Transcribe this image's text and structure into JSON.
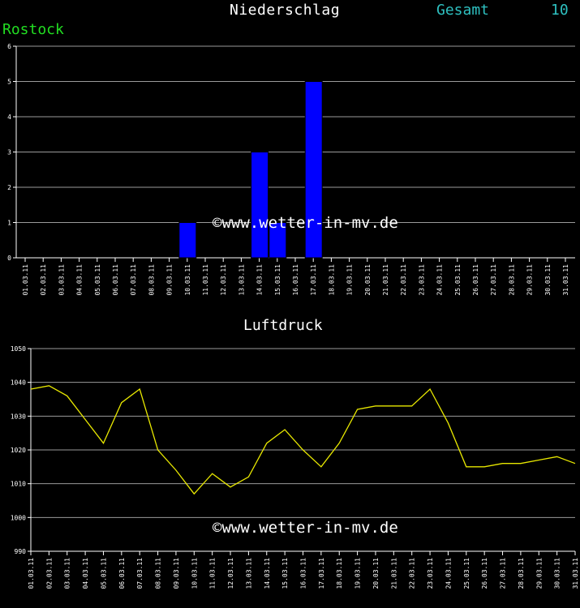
{
  "header": {
    "title": "Niederschlag",
    "total_label": "Gesamt",
    "total_value": "10",
    "station": "Rostock"
  },
  "watermark": "©www.wetter-in-mv.de",
  "colors": {
    "background": "#000000",
    "grid": "#9a9a9a",
    "bar": "#0000ff",
    "line": "#e8e800",
    "axis": "#ffffff"
  },
  "chart_data": [
    {
      "type": "bar",
      "categories": [
        "01.03.11",
        "02.03.11",
        "03.03.11",
        "04.03.11",
        "05.03.11",
        "06.03.11",
        "07.03.11",
        "08.03.11",
        "09.03.11",
        "10.03.11",
        "11.03.11",
        "12.03.11",
        "13.03.11",
        "14.03.11",
        "15.03.11",
        "16.03.11",
        "17.03.11",
        "18.03.11",
        "19.03.11",
        "20.03.11",
        "21.03.11",
        "22.03.11",
        "23.03.11",
        "24.03.11",
        "25.03.11",
        "26.03.11",
        "27.03.11",
        "28.03.11",
        "29.03.11",
        "30.03.11",
        "31.03.11"
      ],
      "values": [
        0,
        0,
        0,
        0,
        0,
        0,
        0,
        0,
        0,
        1,
        0,
        0,
        0,
        3,
        1,
        0,
        5,
        0,
        0,
        0,
        0,
        0,
        0,
        0,
        0,
        0,
        0,
        0,
        0,
        0,
        0
      ],
      "ylim": [
        0,
        6
      ],
      "yticks": [
        0,
        1,
        2,
        3,
        4,
        5,
        6
      ],
      "grid": true
    },
    {
      "type": "line",
      "title": "Luftdruck",
      "x": [
        "01.03.11",
        "02.03.11",
        "03.03.11",
        "04.03.11",
        "05.03.11",
        "06.03.11",
        "07.03.11",
        "08.03.11",
        "09.03.11",
        "10.03.11",
        "11.03.11",
        "12.03.11",
        "13.03.11",
        "14.03.11",
        "15.03.11",
        "16.03.11",
        "17.03.11",
        "18.03.11",
        "19.03.11",
        "20.03.11",
        "21.03.11",
        "22.03.11",
        "23.03.11",
        "24.03.11",
        "25.03.11",
        "26.03.11",
        "27.03.11",
        "28.03.11",
        "29.03.11",
        "30.03.11",
        "31.03.11"
      ],
      "values": [
        1038,
        1039,
        1036,
        1029,
        1022,
        1034,
        1038,
        1020,
        1014,
        1007,
        1013,
        1009,
        1012,
        1022,
        1026,
        1020,
        1015,
        1022,
        1032,
        1033,
        1033,
        1033,
        1038,
        1028,
        1015,
        1015,
        1016,
        1016,
        1017,
        1018,
        1016
      ],
      "ylim": [
        990,
        1050
      ],
      "yticks": [
        990,
        1000,
        1010,
        1020,
        1030,
        1040,
        1050
      ],
      "grid": true
    }
  ]
}
